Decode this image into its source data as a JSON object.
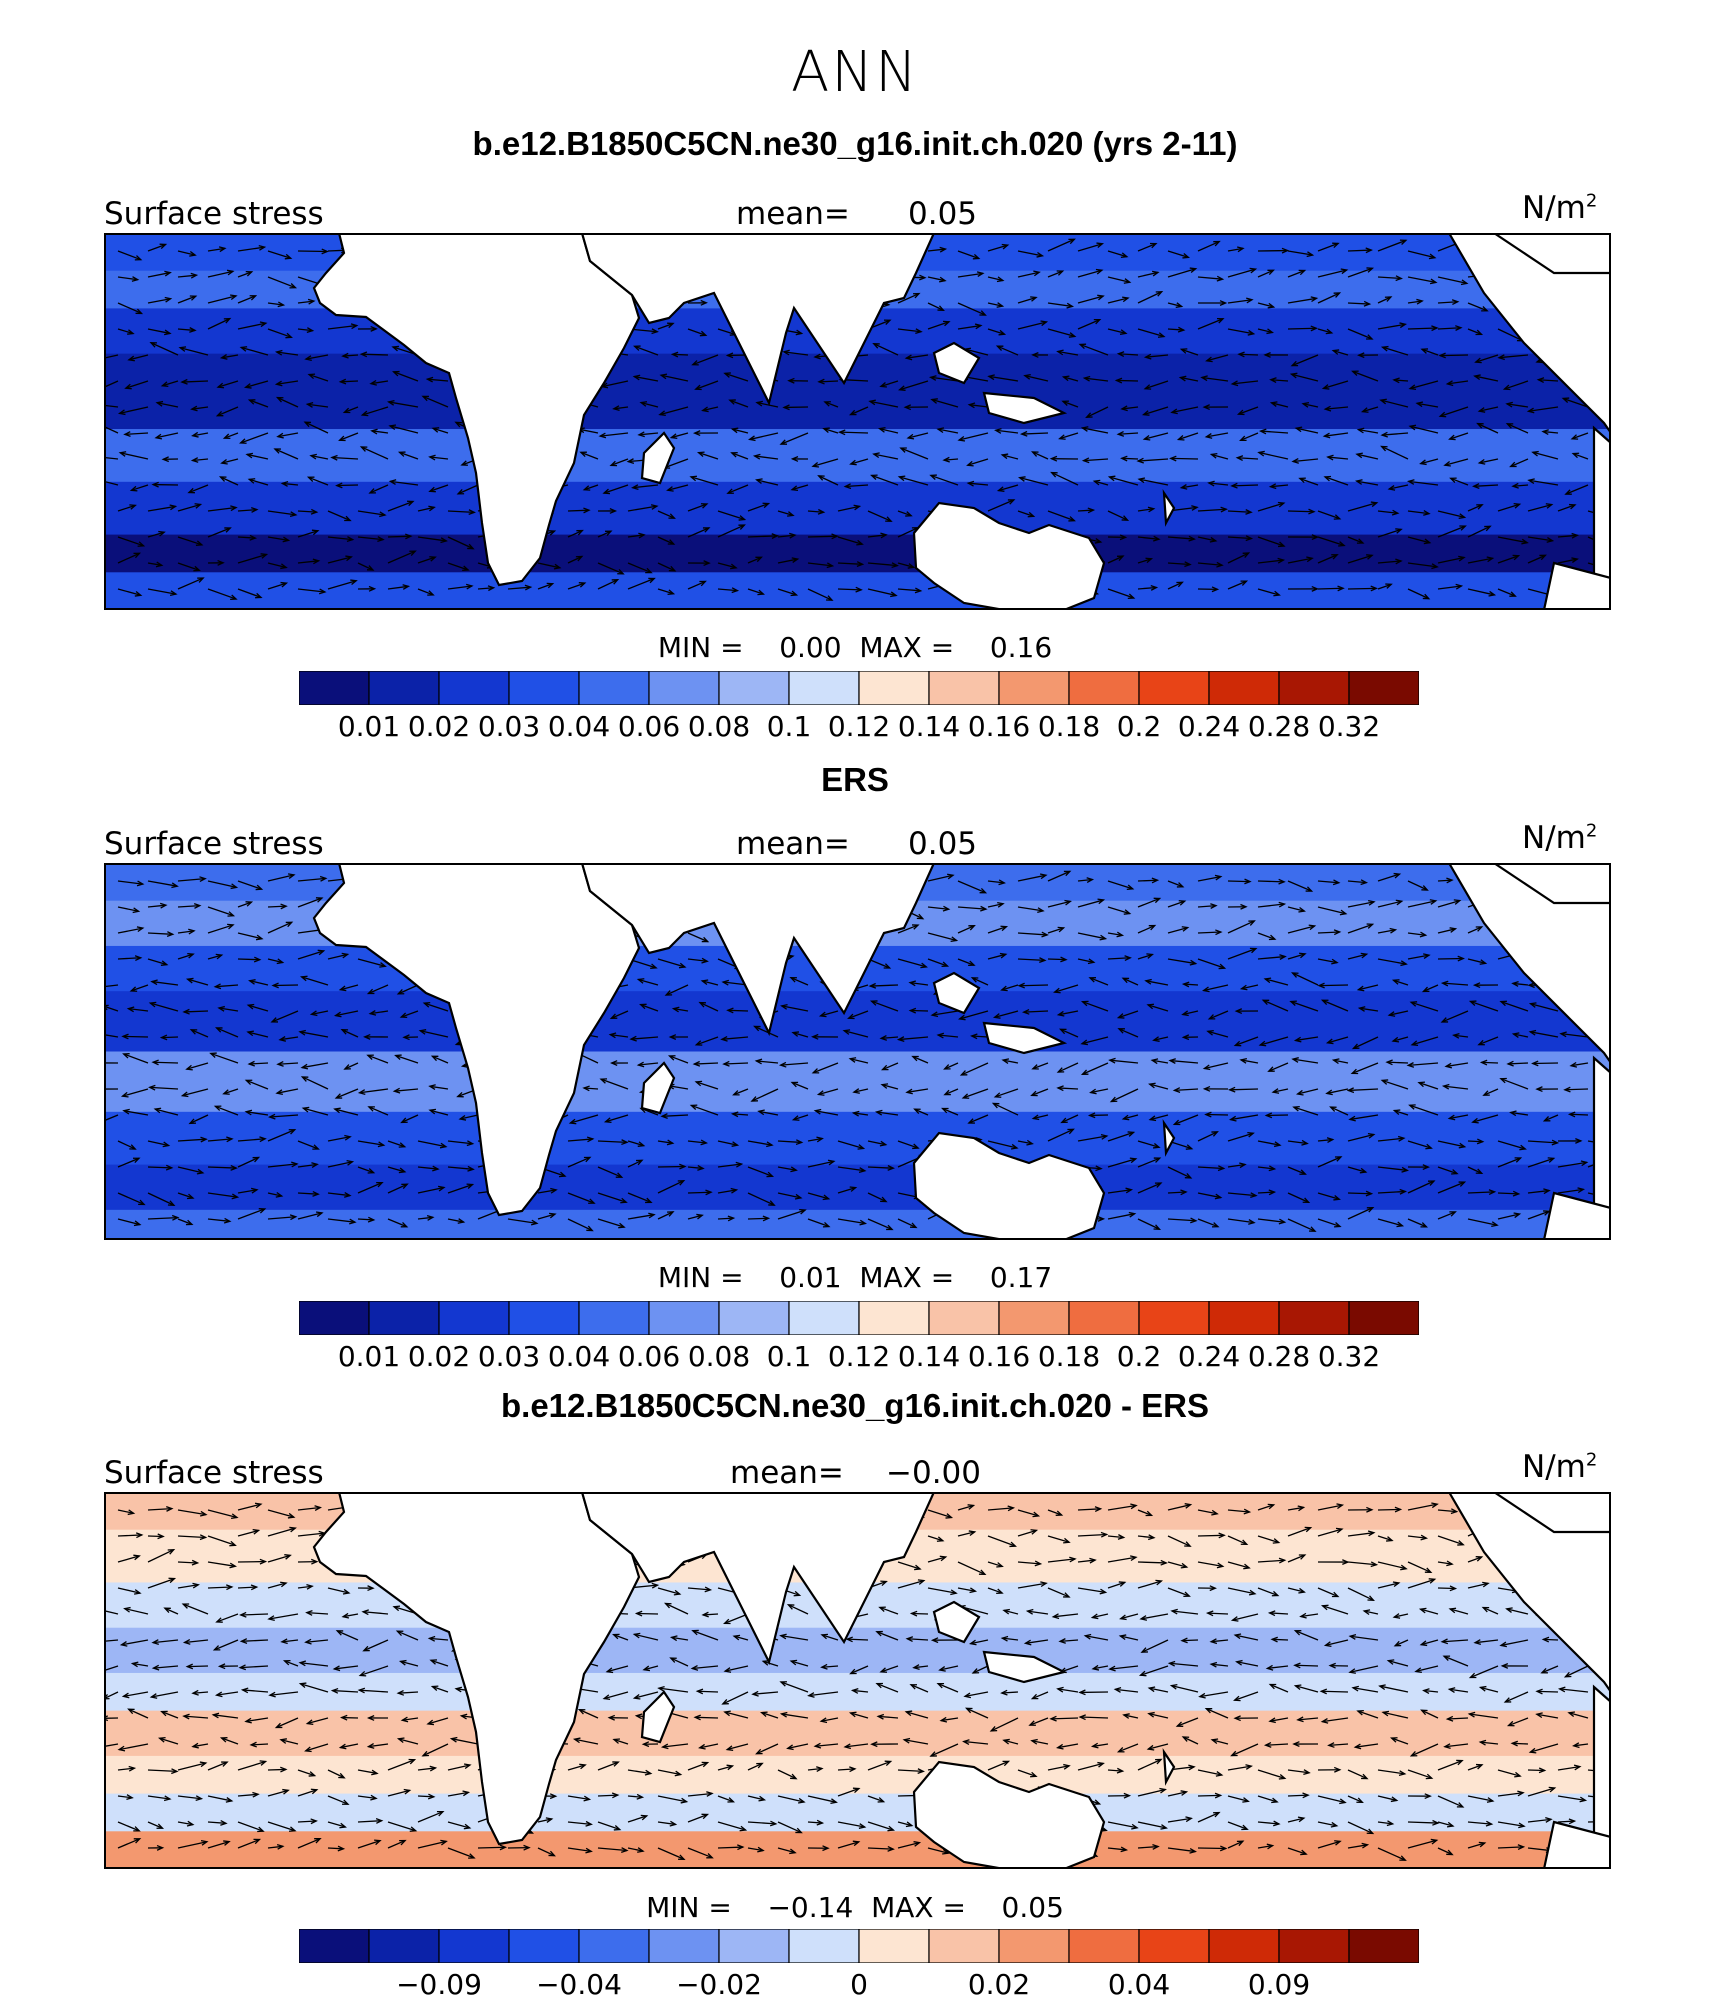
{
  "title": "ANN",
  "panels": [
    {
      "subtitle": "b.e12.B1850C5CN.ne30_g16.init.ch.020 (yrs 2-11)",
      "left_label": "Surface stress",
      "mean_label": "mean=",
      "mean_value": "0.05",
      "units": "N/m",
      "units_exp": "2",
      "min_label": "MIN =",
      "min_value": "0.00",
      "max_label": "MAX =",
      "max_value": "0.16",
      "kind": "abs"
    },
    {
      "subtitle": "ERS",
      "left_label": "Surface stress",
      "mean_label": "mean=",
      "mean_value": "0.05",
      "units": "N/m",
      "units_exp": "2",
      "min_label": "MIN =",
      "min_value": "0.01",
      "max_label": "MAX =",
      "max_value": "0.17",
      "kind": "abs"
    },
    {
      "subtitle": "b.e12.B1850C5CN.ne30_g16.init.ch.020 - ERS",
      "left_label": "Surface stress",
      "mean_label": "mean=",
      "mean_value": "−0.00",
      "units": "N/m",
      "units_exp": "2",
      "min_label": "MIN =",
      "min_value": "−0.14",
      "max_label": "MAX =",
      "max_value": "0.05",
      "kind": "diff"
    }
  ],
  "colorbar_colors": [
    "#0a0f7a",
    "#0b22a8",
    "#1337d0",
    "#2050e6",
    "#3d6ded",
    "#6d92f2",
    "#9db6f5",
    "#cfe0fb",
    "#fde5d2",
    "#f9c3a8",
    "#f3986f",
    "#ef6d40",
    "#e84417",
    "#cf2a06",
    "#a81703",
    "#7a0a00"
  ],
  "colorbar_ticks_abs": [
    "0.01",
    "0.02",
    "0.03",
    "0.04",
    "0.06",
    "0.08",
    "0.1",
    "0.12",
    "0.14",
    "0.16",
    "0.18",
    "0.2",
    "0.24",
    "0.28",
    "0.32"
  ],
  "colorbar_ticks_diff": [
    "−0.09",
    "−0.04",
    "−0.02",
    "0",
    "0.02",
    "0.04",
    "0.09"
  ]
}
